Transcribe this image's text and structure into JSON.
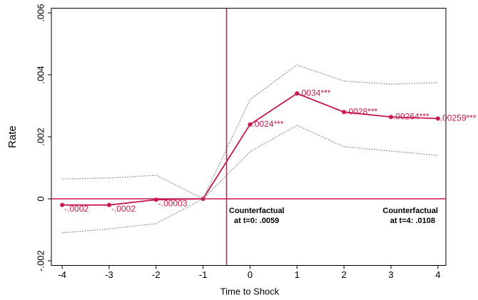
{
  "chart_data": {
    "type": "line",
    "y_label": "Rate",
    "x_label": "Time to Shock",
    "x": [
      -4,
      -3,
      -2,
      -1,
      0,
      1,
      2,
      3,
      4
    ],
    "series": [
      {
        "color": "#c8184a",
        "style": "solid",
        "markers": true,
        "values": [
          -0.0002,
          -0.0002,
          -3e-05,
          0,
          0.0024,
          0.0034,
          0.0028,
          0.00264,
          0.00259
        ],
        "value_labels": [
          "-.0002",
          "-.0002",
          "-.00003",
          null,
          ".0024***",
          ".0034***",
          ".0028***",
          ".00264***",
          ".00259***"
        ]
      },
      {
        "color": "#777777",
        "style": "dotted",
        "markers": false,
        "values": [
          0.00064,
          0.00067,
          0.00076,
          0,
          0.0032,
          0.00432,
          0.0038,
          0.0037,
          0.00375
        ]
      },
      {
        "color": "#777777",
        "style": "dotted",
        "markers": false,
        "values": [
          -0.0011,
          -0.00097,
          -0.0008,
          0,
          0.00152,
          0.00237,
          0.00168,
          0.00154,
          0.0014
        ]
      }
    ],
    "xlim": [
      -4.23,
      4.17
    ],
    "ylim": [
      -0.00215,
      0.00615
    ],
    "xticks": [
      -4,
      -3,
      -2,
      -1,
      0,
      1,
      2,
      3,
      4
    ],
    "yticks": [
      {
        "value": -0.002,
        "label": "-.002"
      },
      0,
      {
        "value": 0.002,
        "label": ".002"
      },
      {
        "value": 0.004,
        "label": ".004"
      },
      {
        "value": 0.006,
        "label": ".006"
      }
    ],
    "vline": -0.5,
    "hline": 0,
    "ref_color": "#c8184a",
    "annotations": [
      {
        "lines": [
          "Counterfactual",
          "at t=0: .0059"
        ]
      },
      {
        "lines": [
          "Counterfactual",
          "at t=4: .0108"
        ]
      }
    ]
  }
}
